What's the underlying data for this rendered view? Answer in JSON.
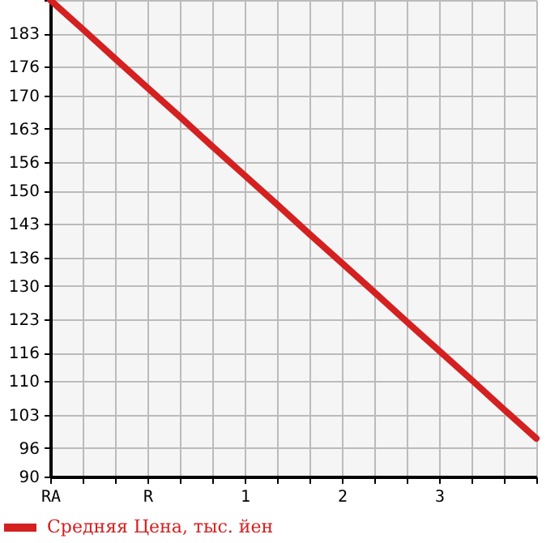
{
  "chart_data": {
    "type": "line",
    "categories": [
      "RA",
      null,
      null,
      "R",
      null,
      null,
      "1",
      null,
      null,
      "2",
      null,
      null,
      "3",
      null,
      null,
      null
    ],
    "ylim": [
      90,
      190
    ],
    "yticks": [
      90,
      96,
      103,
      110,
      116,
      123,
      130,
      136,
      143,
      150,
      156,
      163,
      170,
      176,
      183,
      {
        "value": 190,
        "label": null
      }
    ],
    "series": [
      {
        "name": "Средняя Цена, тыс. йен",
        "color": "#d42020",
        "values": [
          190,
          183.9,
          177.7,
          171.6,
          165.5,
          159.3,
          153.2,
          147.1,
          140.9,
          134.8,
          128.7,
          122.5,
          116.4,
          110.3,
          104.1,
          98
        ]
      }
    ],
    "grid": true,
    "legend": "bottom left",
    "line_style": "solid"
  }
}
